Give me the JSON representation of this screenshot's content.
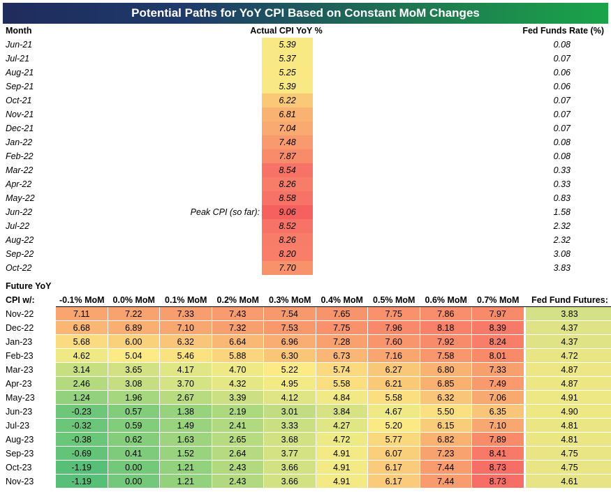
{
  "title": "Potential Paths for YoY CPI Based on Constant MoM Changes",
  "headers": {
    "month": "Month",
    "actual": "Actual CPI YoY %",
    "fed": "Fed Funds Rate (%)"
  },
  "peak_label": "Peak CPI (so far):",
  "actual_rows": [
    {
      "month": "Jun-21",
      "cpi": "5.39",
      "fed": "0.08",
      "color": "#f8e985"
    },
    {
      "month": "Jul-21",
      "cpi": "5.37",
      "fed": "0.07",
      "color": "#f8e985"
    },
    {
      "month": "Aug-21",
      "cpi": "5.25",
      "fed": "0.06",
      "color": "#fae983"
    },
    {
      "month": "Sep-21",
      "cpi": "5.39",
      "fed": "0.06",
      "color": "#f8e985"
    },
    {
      "month": "Oct-21",
      "cpi": "6.22",
      "fed": "0.07",
      "color": "#f9c978"
    },
    {
      "month": "Nov-21",
      "cpi": "6.81",
      "fed": "0.07",
      "color": "#f9b272"
    },
    {
      "month": "Dec-21",
      "cpi": "7.04",
      "fed": "0.07",
      "color": "#f9aa70"
    },
    {
      "month": "Jan-22",
      "cpi": "7.48",
      "fed": "0.08",
      "color": "#f89a6d"
    },
    {
      "month": "Feb-22",
      "cpi": "7.87",
      "fed": "0.08",
      "color": "#f88c6a"
    },
    {
      "month": "Mar-22",
      "cpi": "8.54",
      "fed": "0.33",
      "color": "#f77267"
    },
    {
      "month": "Apr-22",
      "cpi": "8.26",
      "fed": "0.33",
      "color": "#f87d69"
    },
    {
      "month": "May-22",
      "cpi": "8.58",
      "fed": "0.83",
      "color": "#f77267"
    },
    {
      "month": "Jun-22",
      "cpi": "9.06",
      "fed": "1.58",
      "color": "#f6605f"
    },
    {
      "month": "Jul-22",
      "cpi": "8.52",
      "fed": "2.32",
      "color": "#f77267"
    },
    {
      "month": "Aug-22",
      "cpi": "8.26",
      "fed": "2.32",
      "color": "#f87d69"
    },
    {
      "month": "Sep-22",
      "cpi": "8.20",
      "fed": "3.08",
      "color": "#f87e69"
    },
    {
      "month": "Oct-22",
      "cpi": "7.70",
      "fed": "3.83",
      "color": "#f8926b"
    }
  ],
  "future": {
    "label1": "Future YoY",
    "label2": "CPI w/:",
    "columns": [
      "-0.1% MoM",
      "0.0% MoM",
      "0.1% MoM",
      "0.2% MoM",
      "0.3% MoM",
      "0.4% MoM",
      "0.5% MoM",
      "0.6% MoM",
      "0.7% MoM"
    ],
    "fed_header": "Fed Fund Futures:",
    "rows": [
      {
        "month": "Nov-22",
        "values": [
          "7.11",
          "7.22",
          "7.33",
          "7.43",
          "7.54",
          "7.65",
          "7.75",
          "7.86",
          "7.97"
        ],
        "colors": [
          "#f8a570",
          "#f8a26f",
          "#f89e6e",
          "#f89b6e",
          "#f8986d",
          "#f8946c",
          "#f8916c",
          "#f88e6b",
          "#f88a6a"
        ],
        "fed": "3.83",
        "fedcolor": "#d4e186"
      },
      {
        "month": "Dec-22",
        "values": [
          "6.68",
          "6.89",
          "7.10",
          "7.32",
          "7.53",
          "7.75",
          "7.96",
          "8.18",
          "8.39"
        ],
        "colors": [
          "#f9b674",
          "#f9af72",
          "#f8a771",
          "#f89f6f",
          "#f8986d",
          "#f8916c",
          "#f8896a",
          "#f88169",
          "#f77968"
        ],
        "fed": "4.37",
        "fedcolor": "#e0e385"
      },
      {
        "month": "Jan-23",
        "values": [
          "5.68",
          "6.00",
          "6.32",
          "6.64",
          "6.96",
          "7.28",
          "7.60",
          "7.92",
          "8.24"
        ],
        "colors": [
          "#fadb80",
          "#fad17b",
          "#f9c579",
          "#f9b975",
          "#f9ad72",
          "#f8a16f",
          "#f8956d",
          "#f88b6a",
          "#f87e69"
        ],
        "fed": "4.37",
        "fedcolor": "#e0e385"
      },
      {
        "month": "Feb-23",
        "values": [
          "4.62",
          "5.04",
          "5.46",
          "5.88",
          "6.30",
          "6.73",
          "7.16",
          "7.58",
          "8.01"
        ],
        "colors": [
          "#eee985",
          "#fcea84",
          "#fae280",
          "#fad57d",
          "#f9c678",
          "#f9b674",
          "#f8a570",
          "#f8966d",
          "#f88969"
        ],
        "fed": "4.72",
        "fedcolor": "#e8e584"
      },
      {
        "month": "Mar-23",
        "values": [
          "3.14",
          "3.65",
          "4.17",
          "4.70",
          "5.22",
          "5.74",
          "6.27",
          "6.80",
          "7.33"
        ],
        "colors": [
          "#c5df81",
          "#d2e282",
          "#e1e684",
          "#eee985",
          "#fcea84",
          "#fad97f",
          "#f9c778",
          "#f9b272",
          "#f89f6e"
        ],
        "fed": "4.87",
        "fedcolor": "#ece784"
      },
      {
        "month": "Apr-23",
        "values": [
          "2.46",
          "3.08",
          "3.70",
          "4.32",
          "4.95",
          "5.58",
          "6.21",
          "6.85",
          "7.49"
        ],
        "colors": [
          "#b3da7f",
          "#c4de81",
          "#d4e383",
          "#e4e784",
          "#f4ea85",
          "#fade80",
          "#f9c978",
          "#f9b172",
          "#f89a6d"
        ],
        "fed": "4.87",
        "fedcolor": "#ece784"
      },
      {
        "month": "May-23",
        "values": [
          "1.24",
          "1.96",
          "2.67",
          "3.39",
          "4.12",
          "4.84",
          "5.58",
          "6.32",
          "7.06"
        ],
        "colors": [
          "#93d27c",
          "#a5d77e",
          "#b8db80",
          "#ccdf82",
          "#dfe584",
          "#f1e985",
          "#fade80",
          "#f9c579",
          "#f8a970"
        ],
        "fed": "4.91",
        "fedcolor": "#ede784"
      },
      {
        "month": "Jun-23",
        "values": [
          "-0.23",
          "0.57",
          "1.38",
          "2.19",
          "3.01",
          "3.84",
          "4.67",
          "5.50",
          "6.35"
        ],
        "colors": [
          "#6dc67a",
          "#82cd7b",
          "#97d37c",
          "#acd87e",
          "#c2dd81",
          "#d7e383",
          "#eee985",
          "#fae081",
          "#f9c578"
        ],
        "fed": "4.90",
        "fedcolor": "#ede784"
      },
      {
        "month": "Jul-23",
        "values": [
          "-0.32",
          "0.59",
          "1.49",
          "2.41",
          "3.33",
          "4.27",
          "5.20",
          "6.15",
          "7.10"
        ],
        "colors": [
          "#6bc679",
          "#82cd7b",
          "#9ad37d",
          "#b1d97f",
          "#c9df81",
          "#e1e684",
          "#fbea84",
          "#f9cc79",
          "#f8a770"
        ],
        "fed": "4.81",
        "fedcolor": "#ebe684"
      },
      {
        "month": "Aug-23",
        "values": [
          "-0.38",
          "0.62",
          "1.63",
          "2.65",
          "3.68",
          "4.72",
          "5.77",
          "6.82",
          "7.89"
        ],
        "colors": [
          "#6ac679",
          "#83cd7b",
          "#9dd47d",
          "#b7db80",
          "#d2e282",
          "#ede985",
          "#fad87e",
          "#f9b272",
          "#f88c6a"
        ],
        "fed": "4.81",
        "fedcolor": "#ebe684"
      },
      {
        "month": "Sep-23",
        "values": [
          "-0.69",
          "0.41",
          "1.52",
          "2.64",
          "3.77",
          "4.91",
          "6.07",
          "7.23",
          "8.41"
        ],
        "colors": [
          "#63c479",
          "#7ecb7b",
          "#9ad37d",
          "#b6da80",
          "#d4e283",
          "#f3ea85",
          "#f9cf7b",
          "#f8a270",
          "#f87967"
        ],
        "fed": "4.75",
        "fedcolor": "#e9e584"
      },
      {
        "month": "Oct-23",
        "values": [
          "-1.19",
          "0.00",
          "1.21",
          "2.43",
          "3.66",
          "4.91",
          "6.17",
          "7.44",
          "8.73"
        ],
        "colors": [
          "#57bf77",
          "#74c87a",
          "#92d27c",
          "#b2d97f",
          "#d2e282",
          "#f3ea85",
          "#f9cb7a",
          "#f89b6e",
          "#f76e66"
        ],
        "fed": "4.75",
        "fedcolor": "#e9e584"
      },
      {
        "month": "Nov-23",
        "values": [
          "-1.19",
          "0.00",
          "1.21",
          "2.43",
          "3.66",
          "4.91",
          "6.17",
          "7.44",
          "8.73"
        ],
        "colors": [
          "#57bf77",
          "#74c87a",
          "#92d27c",
          "#b2d97f",
          "#d2e282",
          "#f3ea85",
          "#f9cb7a",
          "#f89b6e",
          "#f76e66"
        ],
        "fed": "4.61",
        "fedcolor": "#e6e484"
      }
    ]
  }
}
